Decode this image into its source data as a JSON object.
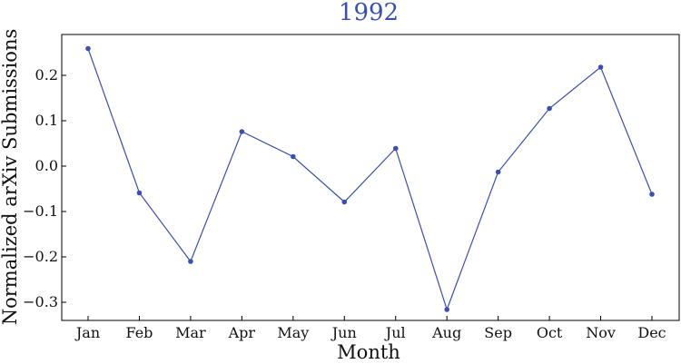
{
  "chart_data": {
    "type": "line",
    "title": "1992",
    "xlabel": "Month",
    "ylabel": "Normalized arXiv Submissions",
    "categories": [
      "Jan",
      "Feb",
      "Mar",
      "Apr",
      "May",
      "Jun",
      "Jul",
      "Aug",
      "Sep",
      "Oct",
      "Nov",
      "Dec"
    ],
    "series": [
      {
        "values": [
          0.259,
          -0.059,
          -0.21,
          0.076,
          0.021,
          -0.079,
          0.039,
          -0.316,
          -0.013,
          0.127,
          0.218,
          -0.062
        ],
        "color": "#3a4fb0"
      }
    ],
    "ylim": [
      -0.34,
      0.29
    ],
    "yticks": [
      0.2,
      0.1,
      0.0,
      -0.1,
      -0.2,
      -0.3
    ],
    "ytick_labels": [
      "0.2",
      "0.1",
      "0.0",
      "−0.1",
      "−0.2",
      "−0.3"
    ],
    "grid": false,
    "legend": "none",
    "title_color": "#3a4fb0"
  }
}
